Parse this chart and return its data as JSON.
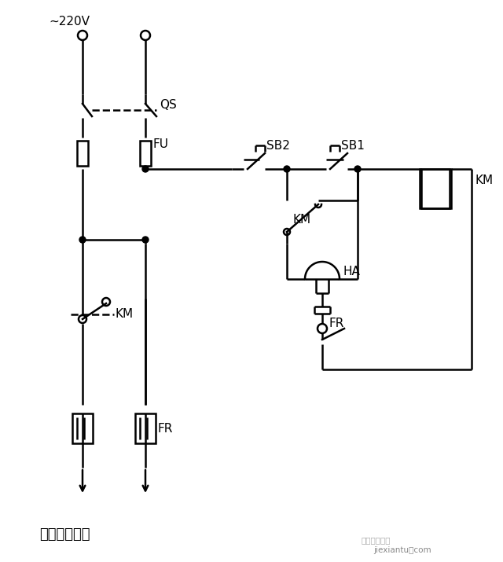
{
  "bg_color": "#ffffff",
  "line_color": "#000000",
  "figsize": [
    6.4,
    7.15
  ],
  "dpi": 100,
  "label_220v": "~220V",
  "label_QS": "QS",
  "label_FU": "FU",
  "label_SB2": "SB2",
  "label_SB1": "SB1",
  "label_KM1": "KM",
  "label_KM2": "KM",
  "label_KM3": "KM",
  "label_HA": "HA",
  "label_FR1": "FR",
  "label_FR2": "FR",
  "bottom_label": "接进户电源线",
  "wm1": "金筱电气资源",
  "wm2": "jiexiantu．com"
}
